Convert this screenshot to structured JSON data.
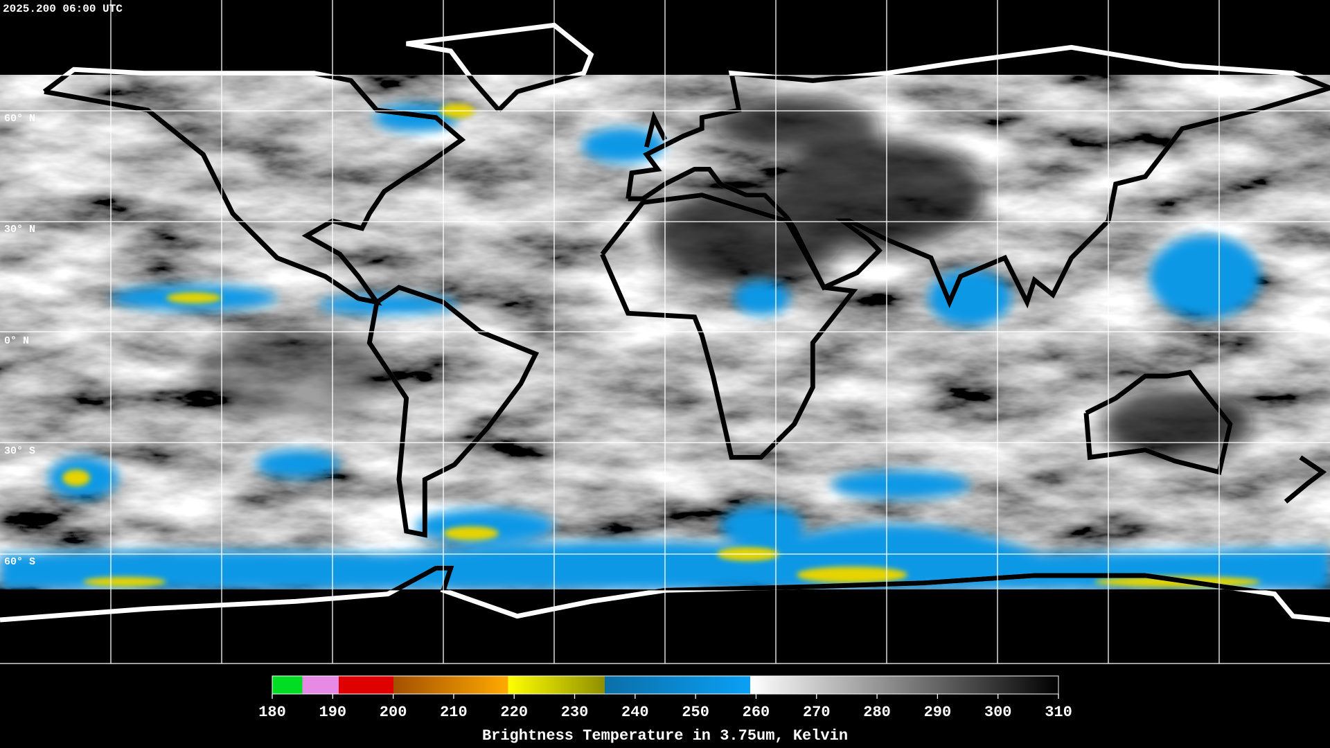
{
  "header": {
    "timestamp": "2025.200 06:00 UTC"
  },
  "map": {
    "latitude_labels": [
      "60° N",
      "30° N",
      "0° N",
      "30° S",
      "60° S"
    ]
  },
  "colorbar": {
    "ticks": [
      180,
      190,
      200,
      210,
      220,
      230,
      240,
      250,
      260,
      270,
      280,
      290,
      300,
      310
    ],
    "title": "Brightness Temperature in 3.75um, Kelvin"
  }
}
